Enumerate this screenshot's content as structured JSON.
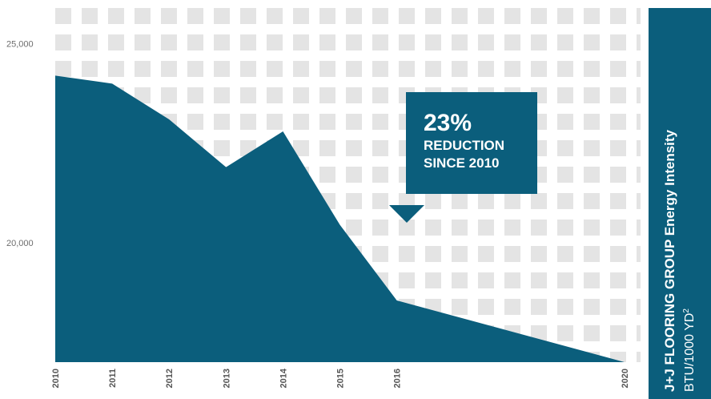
{
  "colors": {
    "fill": "#0b5e7c",
    "grid": "#e4e4e4",
    "panel": "#0b5e7c"
  },
  "callout": {
    "value": "23%",
    "line1": "REDUCTION",
    "line2": "SINCE 2010"
  },
  "side_panel": {
    "title": "J+J FLOORING GROUP Energy  Intensity",
    "units": "BTU/1000 YD",
    "units_sup": "2"
  },
  "chart_data": {
    "type": "area",
    "x": [
      2010,
      2011,
      2012,
      2013,
      2014,
      2015,
      2016,
      2020
    ],
    "values": [
      24200,
      24000,
      23100,
      21900,
      22800,
      20450,
      18550,
      17000
    ],
    "ylim": [
      17000,
      25900
    ],
    "y_ticks": [
      20000,
      25000
    ],
    "y_tick_labels": [
      "20,000",
      "25,000"
    ],
    "x_tick_labels": [
      "2010",
      "2011",
      "2012",
      "2013",
      "2014",
      "2015",
      "2016",
      "2020"
    ],
    "grid": true
  }
}
